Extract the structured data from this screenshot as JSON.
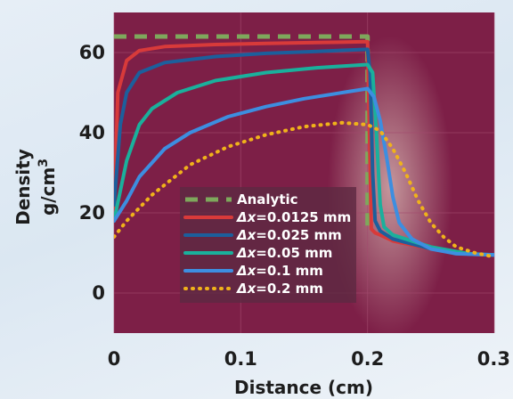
{
  "chart_data": {
    "type": "line",
    "xlabel": "Distance (cm)",
    "ylabel": "Density",
    "ylabel_unit": "g/cm",
    "ylabel_unit_sup": "3",
    "xlim": [
      0,
      0.3
    ],
    "ylim": [
      -10,
      70
    ],
    "x_ticks": [
      {
        "value": 0,
        "label": "0"
      },
      {
        "value": 0.1,
        "label": "0.1"
      },
      {
        "value": 0.2,
        "label": "0.2"
      },
      {
        "value": 0.3,
        "label": "0.3"
      }
    ],
    "y_ticks": [
      {
        "value": 0,
        "label": "0"
      },
      {
        "value": 20,
        "label": "20"
      },
      {
        "value": 40,
        "label": "40"
      },
      {
        "value": 60,
        "label": "60"
      }
    ],
    "grid": true,
    "legend_position": "bottom-center",
    "colors": {
      "plot_background": "#7d1f47",
      "analytic": "#7ea85c",
      "dx_0125": "#d83a3a",
      "dx_025": "#1c5f9c",
      "dx_05": "#1ab09c",
      "dx_1": "#3d8ee0",
      "dx_2": "#f0b21a"
    },
    "series": [
      {
        "name": "Analytic",
        "prefix": "",
        "style": "dashed",
        "color_key": "analytic",
        "x": [
          0,
          0.2,
          0.2
        ],
        "y": [
          64,
          64,
          15
        ]
      },
      {
        "name": "=0.0125 mm",
        "prefix": "Δx",
        "style": "solid",
        "color_key": "dx_0125",
        "x": [
          0.0,
          0.003,
          0.01,
          0.02,
          0.04,
          0.08,
          0.12,
          0.16,
          0.2,
          0.2015,
          0.203,
          0.206,
          0.21,
          0.22,
          0.25,
          0.28,
          0.3
        ],
        "y": [
          20,
          50,
          58,
          60.5,
          61.5,
          62,
          62.3,
          62.5,
          62.7,
          40,
          16,
          15,
          14.5,
          13,
          11,
          9.7,
          9.5
        ]
      },
      {
        "name": "=0.025 mm",
        "prefix": "Δx",
        "style": "solid",
        "color_key": "dx_025",
        "x": [
          0.0,
          0.005,
          0.01,
          0.02,
          0.04,
          0.08,
          0.12,
          0.16,
          0.2,
          0.202,
          0.204,
          0.206,
          0.21,
          0.22,
          0.25,
          0.28,
          0.3
        ],
        "y": [
          22,
          42,
          50,
          55,
          57.5,
          59,
          59.8,
          60.3,
          60.8,
          55,
          30,
          18,
          15.5,
          13.5,
          11,
          9.7,
          9.5
        ]
      },
      {
        "name": "=0.05 mm",
        "prefix": "Δx",
        "style": "solid",
        "color_key": "dx_05",
        "x": [
          0.0,
          0.01,
          0.02,
          0.03,
          0.05,
          0.08,
          0.12,
          0.16,
          0.2,
          0.204,
          0.207,
          0.21,
          0.213,
          0.22,
          0.25,
          0.28,
          0.3
        ],
        "y": [
          18,
          33,
          42,
          46,
          50,
          53,
          55,
          56.2,
          57,
          55,
          40,
          22,
          16.5,
          14.5,
          11.5,
          9.8,
          9.5
        ]
      },
      {
        "name": "=0.1 mm",
        "prefix": "Δx",
        "style": "solid",
        "color_key": "dx_1",
        "x": [
          0.0,
          0.01,
          0.02,
          0.04,
          0.06,
          0.09,
          0.12,
          0.15,
          0.18,
          0.2,
          0.205,
          0.21,
          0.215,
          0.22,
          0.225,
          0.235,
          0.25,
          0.27,
          0.3
        ],
        "y": [
          18,
          23,
          29,
          36,
          40,
          44,
          46.5,
          48.5,
          50,
          51,
          49,
          43,
          34,
          24,
          17.5,
          13.5,
          11,
          9.8,
          9.5
        ]
      },
      {
        "name": "=0.2 mm",
        "prefix": "Δx",
        "style": "dotted",
        "color_key": "dx_2",
        "x": [
          0.0,
          0.01,
          0.03,
          0.06,
          0.09,
          0.12,
          0.15,
          0.18,
          0.2,
          0.21,
          0.22,
          0.23,
          0.24,
          0.25,
          0.26,
          0.27,
          0.285,
          0.3
        ],
        "y": [
          14,
          18,
          24.5,
          32,
          36.5,
          39.5,
          41.5,
          42.5,
          42,
          40.5,
          36,
          30,
          23,
          17.5,
          14,
          11.5,
          10,
          9
        ]
      }
    ]
  }
}
